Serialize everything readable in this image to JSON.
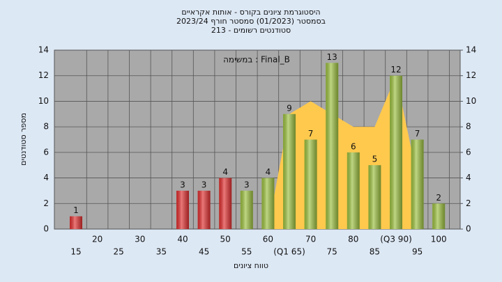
{
  "chart_data": {
    "type": "bar",
    "title": "היסטוגרמת ציונים בקורס - אותות אקראיים",
    "subtitle": "בסמסטר  (01/2023)  סמסטר חורף 2023/24",
    "subtitle2": "סטודנטים רשומים - 213",
    "x_label": "טווח ציונים",
    "y_label": "מספר סטודנטים",
    "categories": [
      "15",
      "20",
      "25",
      "30",
      "35",
      "40",
      "45",
      "50",
      "55",
      "60",
      "(Q1 65)",
      "70",
      "75",
      "80",
      "85",
      "(Q3 90)",
      "95",
      "100"
    ],
    "series": [
      {
        "name": "במשימה : Final_B",
        "type": "area",
        "color": "#ffc94d",
        "values": [
          null,
          null,
          null,
          null,
          null,
          null,
          null,
          null,
          null,
          0,
          9,
          10,
          9,
          8,
          8,
          12,
          4,
          null
        ]
      },
      {
        "type": "bar",
        "colors": [
          "#e03030",
          "#e03030",
          "#e03030",
          "#e03030",
          "#e03030",
          "#e03030",
          "#e03030",
          "#e03030",
          "#9cc040",
          "#9cc040",
          "#9cc040",
          "#9cc040",
          "#9cc040",
          "#9cc040",
          "#9cc040",
          "#9cc040",
          "#9cc040",
          "#9cc040"
        ],
        "values": [
          1,
          0,
          0,
          0,
          0,
          3,
          3,
          4,
          3,
          4,
          9,
          7,
          13,
          6,
          5,
          12,
          7,
          2
        ]
      }
    ],
    "ylim": [
      0,
      14
    ],
    "yticks": [
      0,
      2,
      4,
      6,
      8,
      10,
      12,
      14
    ],
    "y2lim": [
      0,
      14
    ],
    "y2ticks": [
      0,
      2,
      4,
      6,
      8,
      10,
      12,
      14
    ],
    "grid": true
  }
}
